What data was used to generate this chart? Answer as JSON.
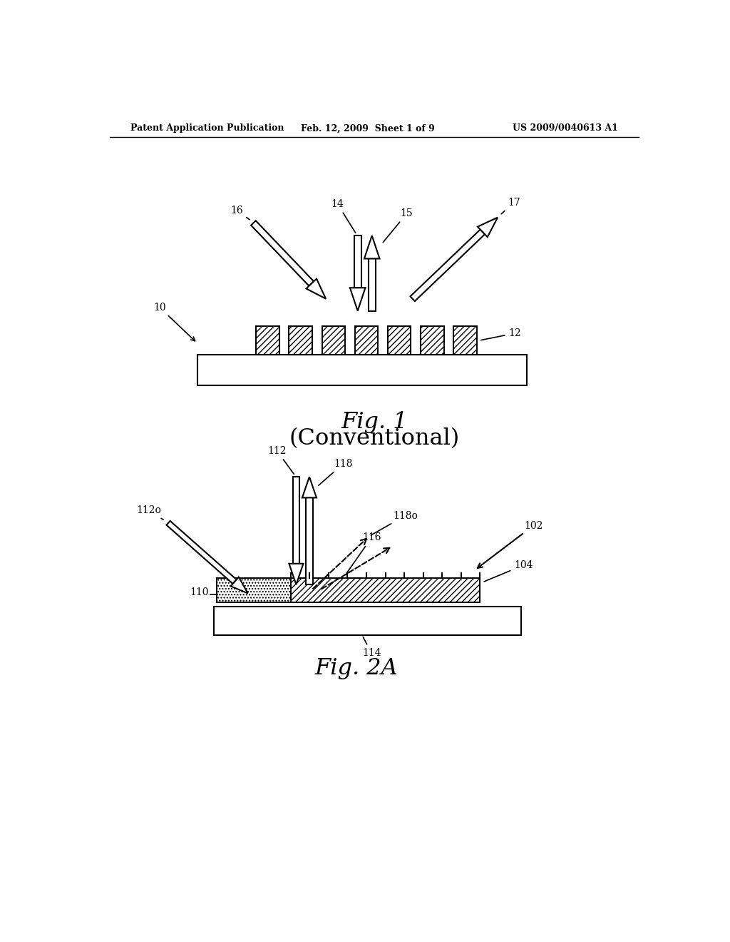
{
  "bg_color": "#ffffff",
  "header_left": "Patent Application Publication",
  "header_mid": "Feb. 12, 2009  Sheet 1 of 9",
  "header_right": "US 2009/0040613 A1",
  "fig1_title": "Fig. 1",
  "fig1_subtitle": "(Conventional)",
  "fig2_title": "Fig. 2A",
  "line_color": "#000000",
  "label_color": "#000000"
}
